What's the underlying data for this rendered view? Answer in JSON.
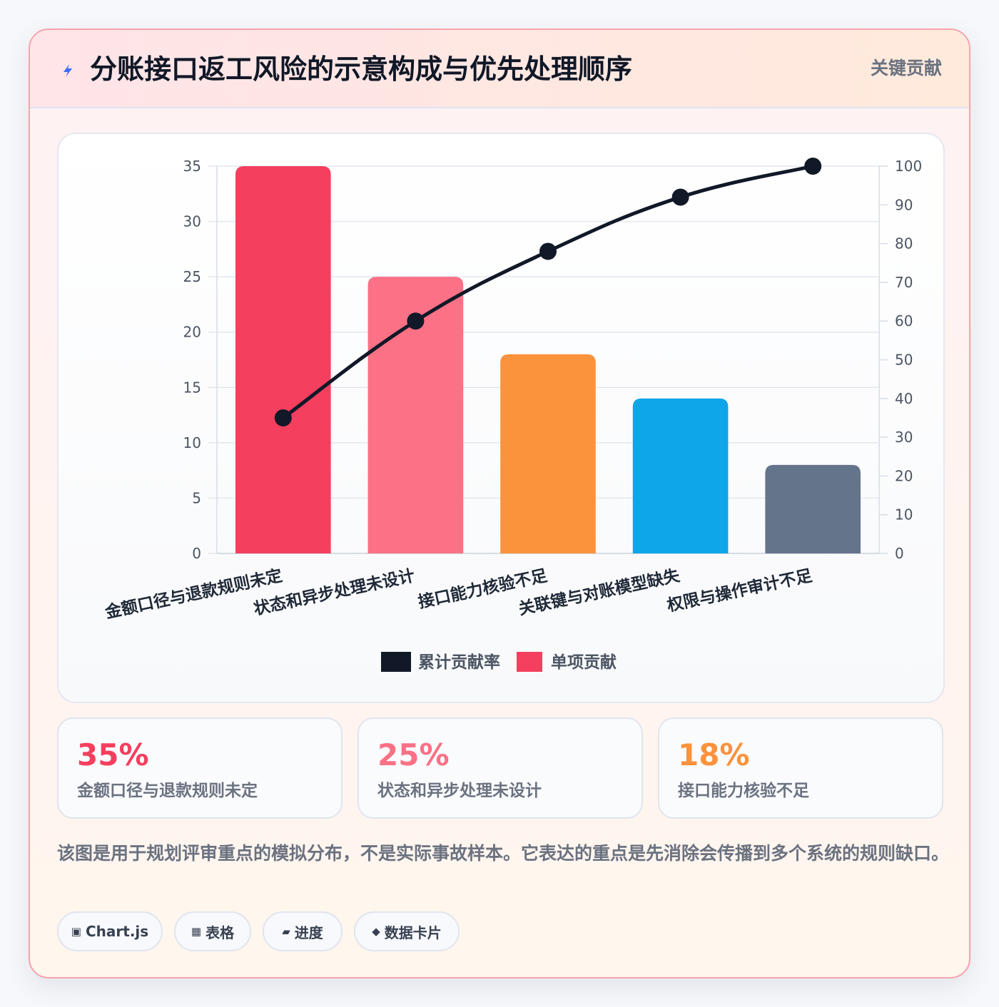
{
  "header": {
    "title": "分账接口返工风险的示意构成与优先处理顺序",
    "badge": "关键贡献",
    "icon": "lightning-icon"
  },
  "chart_data": {
    "type": "bar",
    "categories": [
      "金额口径与退款规则未定",
      "状态和异步处理未设计",
      "接口能力核验不足",
      "关联键与对账模型缺失",
      "权限与操作审计不足"
    ],
    "series": [
      {
        "name": "单项贡献",
        "type": "bar",
        "axis": "left",
        "values": [
          35,
          25,
          18,
          14,
          8
        ]
      },
      {
        "name": "累计贡献率",
        "type": "line",
        "axis": "right",
        "values": [
          35,
          60,
          78,
          92,
          100
        ]
      }
    ],
    "bar_colors": [
      "#f43f5e",
      "#fb7185",
      "#fb923c",
      "#0ea5e9",
      "#64748b"
    ],
    "line_color": "#111827",
    "ylim_left": [
      0,
      35
    ],
    "ylim_right": [
      0,
      100
    ],
    "yticks_left": [
      0,
      5,
      10,
      15,
      20,
      25,
      30,
      35
    ],
    "yticks_right": [
      0,
      10,
      20,
      30,
      40,
      50,
      60,
      70,
      80,
      90,
      100
    ],
    "grid": true,
    "legend_position": "bottom"
  },
  "stats": [
    {
      "value": "35%",
      "label": "金额口径与退款规则未定",
      "color": "#f43f5e"
    },
    {
      "value": "25%",
      "label": "状态和异步处理未设计",
      "color": "#fb7185"
    },
    {
      "value": "18%",
      "label": "接口能力核验不足",
      "color": "#fb923c"
    }
  ],
  "note": "该图是用于规划评审重点的模拟分布，不是实际事故样本。它表达的重点是先消除会传播到多个系统的规则缺口。",
  "chips": [
    {
      "icon": "▣",
      "label": "Chart.js"
    },
    {
      "icon": "▦",
      "label": "表格"
    },
    {
      "icon": "▰",
      "label": "进度"
    },
    {
      "icon": "◆",
      "label": "数据卡片"
    }
  ]
}
